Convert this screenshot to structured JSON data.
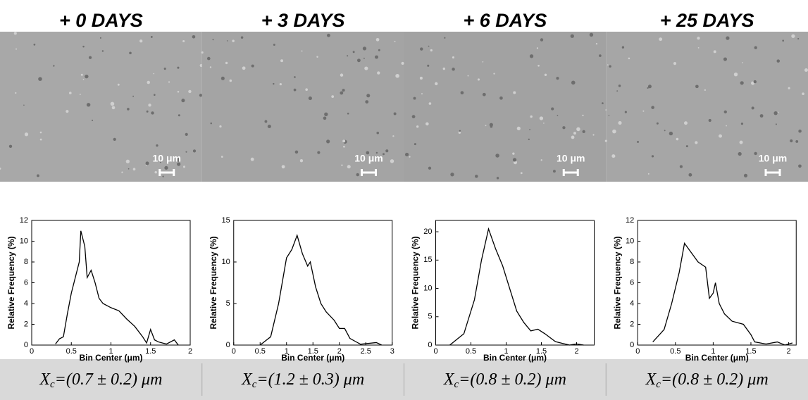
{
  "chart_data": [
    {
      "type": "line",
      "panel_title": "+ 0 DAYS",
      "scale_bar": "10 μm",
      "xlabel": "Bin Center (μm)",
      "ylabel": "Relative Frequency (%)",
      "xlim": [
        0,
        2
      ],
      "xticks": [
        0,
        0.5,
        1,
        1.5,
        2
      ],
      "ylim": [
        0,
        12
      ],
      "yticks": [
        0,
        2,
        4,
        6,
        8,
        10,
        12
      ],
      "x": [
        0.3,
        0.35,
        0.4,
        0.45,
        0.5,
        0.55,
        0.6,
        0.62,
        0.67,
        0.7,
        0.75,
        0.8,
        0.85,
        0.9,
        0.95,
        1,
        1.1,
        1.2,
        1.3,
        1.4,
        1.45,
        1.5,
        1.55,
        1.6,
        1.7,
        1.8,
        1.85
      ],
      "values": [
        0.1,
        0.6,
        0.8,
        3,
        5,
        6.5,
        8,
        11,
        9.5,
        6.5,
        7.2,
        6,
        4.5,
        4,
        3.8,
        3.6,
        3.3,
        2.5,
        1.8,
        0.8,
        0.2,
        1.5,
        0.5,
        0.3,
        0.1,
        0.5,
        0
      ],
      "color": "#000000",
      "caption": {
        "symbol": "X",
        "subscript": "c",
        "rest": "=(0.7 ± 0.2) μm"
      }
    },
    {
      "type": "line",
      "panel_title": "+ 3 DAYS",
      "scale_bar": "10 μm",
      "xlabel": "Bin Center (μm)",
      "ylabel": "Relative Frequency (%)",
      "xlim": [
        0,
        3
      ],
      "xticks": [
        0,
        0.5,
        1,
        1.5,
        2,
        2.5,
        3
      ],
      "ylim": [
        0,
        15
      ],
      "yticks": [
        0,
        5,
        10,
        15
      ],
      "x": [
        0.5,
        0.7,
        0.85,
        1,
        1.1,
        1.2,
        1.3,
        1.4,
        1.45,
        1.55,
        1.65,
        1.75,
        1.9,
        2,
        2.1,
        2.2,
        2.4,
        2.7,
        2.8
      ],
      "values": [
        0,
        1,
        5,
        10.5,
        11.5,
        13.2,
        11,
        9.5,
        10,
        7,
        5,
        4,
        3,
        2,
        2,
        0.8,
        0.1,
        0.3,
        0
      ],
      "color": "#000000",
      "caption": {
        "symbol": "X",
        "subscript": "c",
        "rest": "=(1.2 ± 0.3) μm"
      }
    },
    {
      "type": "line",
      "panel_title": "+ 6 DAYS",
      "scale_bar": "10 μm",
      "xlabel": "Bin Center (μm)",
      "ylabel": "Relative Frequency (%)",
      "xlim": [
        0,
        2.25
      ],
      "xticks": [
        0,
        0.5,
        1,
        1.5,
        2
      ],
      "ylim": [
        0,
        22
      ],
      "yticks": [
        0,
        5,
        10,
        15,
        20
      ],
      "x": [
        0.2,
        0.4,
        0.55,
        0.65,
        0.75,
        0.85,
        0.95,
        1.05,
        1.15,
        1.25,
        1.35,
        1.45,
        1.55,
        1.7,
        1.8,
        1.9,
        2,
        2.1
      ],
      "values": [
        0,
        2,
        8,
        15,
        20.5,
        17,
        14,
        10,
        6,
        4,
        2.5,
        2.8,
        2,
        0.6,
        0.3,
        0,
        0.2,
        0
      ],
      "color": "#000000",
      "caption": {
        "symbol": "X",
        "subscript": "c",
        "rest": "=(0.8 ± 0.2) μm"
      }
    },
    {
      "type": "line",
      "panel_title": "+ 25 DAYS",
      "scale_bar": "10 μm",
      "xlabel": "Bin Center (μm)",
      "ylabel": "Relative Frequency (%)",
      "xlim": [
        0,
        2.1
      ],
      "xticks": [
        0,
        0.5,
        1,
        1.5,
        2
      ],
      "ylim": [
        0,
        12
      ],
      "yticks": [
        0,
        2,
        4,
        6,
        8,
        10,
        12
      ],
      "x": [
        0.2,
        0.35,
        0.45,
        0.55,
        0.62,
        0.7,
        0.8,
        0.9,
        0.95,
        1,
        1.03,
        1.08,
        1.15,
        1.25,
        1.4,
        1.5,
        1.55,
        1.7,
        1.85,
        1.95,
        2.05
      ],
      "values": [
        0.3,
        1.5,
        4,
        7,
        9.8,
        9,
        8,
        7.5,
        4.5,
        5,
        6,
        4,
        3,
        2.3,
        2,
        1,
        0.3,
        0.1,
        0.3,
        0,
        0.2
      ],
      "color": "#000000",
      "caption": {
        "symbol": "X",
        "subscript": "c",
        "rest": "=(0.8 ± 0.2) μm"
      }
    }
  ]
}
